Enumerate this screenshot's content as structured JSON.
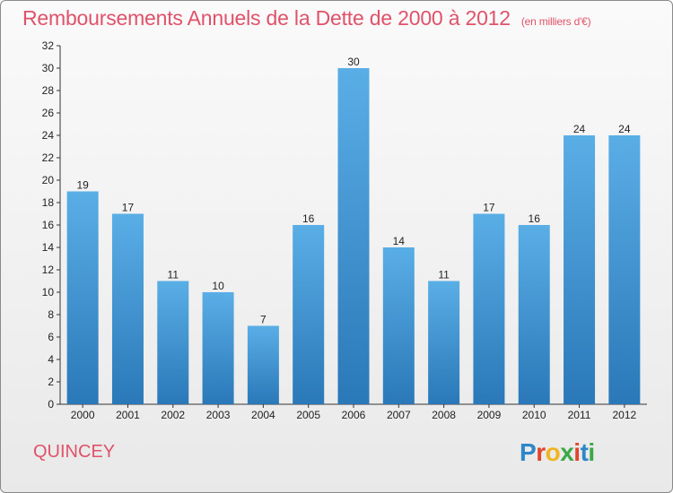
{
  "header": {
    "title": "Remboursements Annuels de la Dette de 2000 à 2012",
    "unit": "(en milliers d'€)"
  },
  "footer": {
    "city": "QUINCEY",
    "logo_letters": [
      "P",
      "r",
      "o",
      "x",
      "i",
      "t",
      "i"
    ],
    "logo_colors": [
      "#2e86c9",
      "#e2442e",
      "#f0b420",
      "#3aa845",
      "#e2442e",
      "#2e86c9",
      "#3aa845"
    ]
  },
  "chart_data": {
    "type": "bar",
    "categories": [
      "2000",
      "2001",
      "2002",
      "2003",
      "2004",
      "2005",
      "2006",
      "2007",
      "2008",
      "2009",
      "2010",
      "2011",
      "2012"
    ],
    "values": [
      19,
      17,
      11,
      10,
      7,
      16,
      30,
      14,
      11,
      17,
      16,
      24,
      24
    ],
    "ylim": [
      0,
      32
    ],
    "yticks": [
      0,
      2,
      4,
      6,
      8,
      10,
      12,
      14,
      16,
      18,
      20,
      22,
      24,
      26,
      28,
      30,
      32
    ],
    "grid": false,
    "colors": {
      "bar_top": "#5aaee6",
      "bar_bottom": "#2a78b8",
      "axis": "#333333"
    }
  }
}
